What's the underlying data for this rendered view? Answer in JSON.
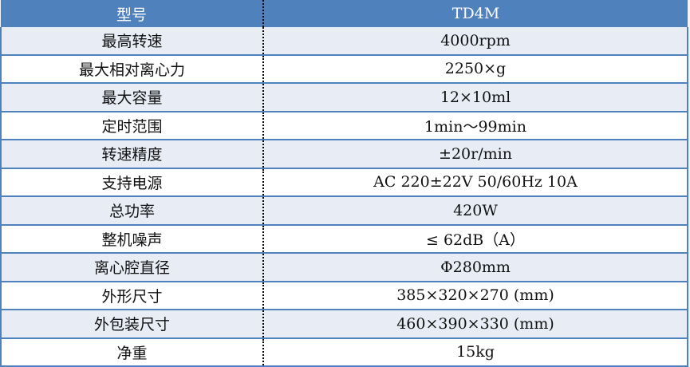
{
  "header": {
    "label": "型号",
    "value": "TD4M"
  },
  "rows": [
    {
      "label": "最高转速",
      "value": "4000rpm"
    },
    {
      "label": "最大相对离心力",
      "value": "2250×g"
    },
    {
      "label": "最大容量",
      "value": "12×10ml"
    },
    {
      "label": "定时范围",
      "value": "1min～99min"
    },
    {
      "label": "转速精度",
      "value": "±20r/min"
    },
    {
      "label": "支持电源",
      "value": "AC 220±22V 50/60Hz 10A"
    },
    {
      "label": "总功率",
      "value": "420W"
    },
    {
      "label": "整机噪声",
      "value": "≤ 62dB（A）"
    },
    {
      "label": "离心腔直径",
      "value": "Φ280mm"
    },
    {
      "label": "外形尺寸",
      "value": "385×320×270 (mm)"
    },
    {
      "label": "外包装尺寸",
      "value": "460×390×330 (mm)"
    },
    {
      "label": "净重",
      "value": "15kg"
    }
  ]
}
